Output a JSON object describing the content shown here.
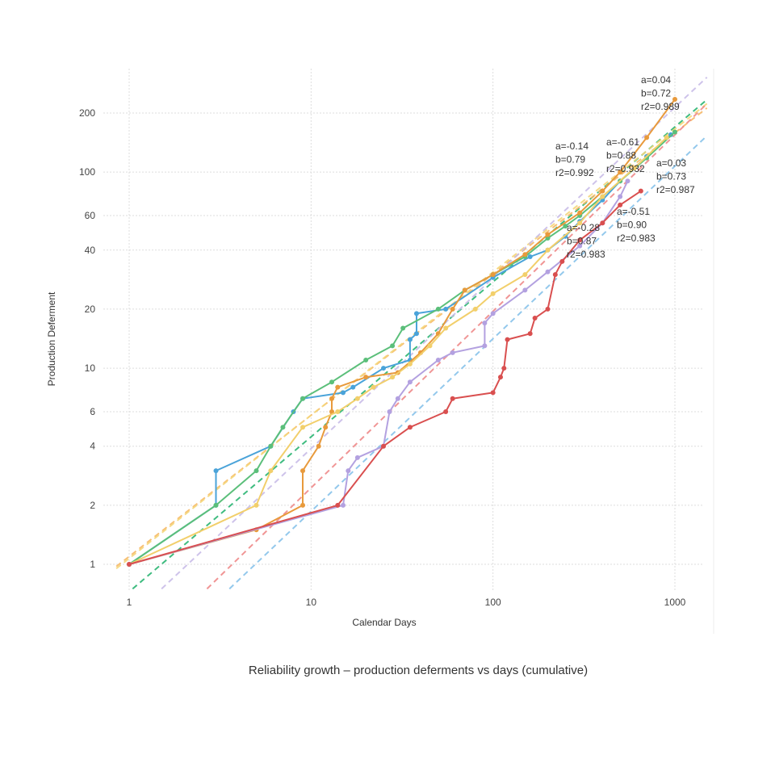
{
  "caption": "Reliability growth – production deferments vs days (cumulative)",
  "chart_data": {
    "type": "scatter",
    "title": "Reliability growth – production deferments vs days (cumulative)",
    "xlabel": "Calendar Days",
    "ylabel": "Production Deferment",
    "x_scale": "log",
    "y_scale": "log",
    "xlim": [
      0.85,
      1500
    ],
    "ylim": [
      0.75,
      380
    ],
    "x_ticks": [
      1,
      10,
      100,
      1000
    ],
    "x_tick_labels": [
      "1",
      "10",
      "100",
      "1000"
    ],
    "y_ticks": [
      1,
      2,
      4,
      6,
      10,
      20,
      40,
      60,
      100,
      200
    ],
    "y_tick_labels": [
      "1",
      "2",
      "4",
      "6",
      "10",
      "20",
      "40",
      "60",
      "100",
      "200"
    ],
    "grid": true,
    "legend": "none",
    "series": [
      {
        "color": "#4aa3d9",
        "points": [
          [
            1,
            1
          ],
          [
            3,
            2
          ],
          [
            3,
            3
          ],
          [
            6,
            4
          ],
          [
            8,
            6
          ],
          [
            9,
            7
          ],
          [
            15,
            7.5
          ],
          [
            17,
            8
          ],
          [
            25,
            10
          ],
          [
            35,
            11
          ],
          [
            35,
            14
          ],
          [
            38,
            15
          ],
          [
            38,
            19
          ],
          [
            55,
            20
          ],
          [
            100,
            29
          ],
          [
            160,
            37
          ],
          [
            200,
            40
          ],
          [
            250,
            47
          ],
          [
            300,
            56
          ],
          [
            400,
            72
          ],
          [
            500,
            90
          ],
          [
            700,
            120
          ],
          [
            950,
            155
          ]
        ]
      },
      {
        "color": "#5bbf7a",
        "points": [
          [
            1,
            1
          ],
          [
            3,
            2
          ],
          [
            5,
            3
          ],
          [
            6,
            4
          ],
          [
            7,
            5
          ],
          [
            9,
            7
          ],
          [
            13,
            8.5
          ],
          [
            20,
            11
          ],
          [
            28,
            13
          ],
          [
            32,
            16
          ],
          [
            50,
            20
          ],
          [
            70,
            25
          ],
          [
            100,
            30
          ],
          [
            150,
            37
          ],
          [
            200,
            46
          ],
          [
            250,
            53
          ],
          [
            300,
            60
          ],
          [
            400,
            75
          ],
          [
            500,
            90
          ],
          [
            700,
            118
          ],
          [
            1000,
            160
          ]
        ]
      },
      {
        "color": "#e89a3c",
        "points": [
          [
            1,
            1
          ],
          [
            5,
            1.5
          ],
          [
            9,
            2
          ],
          [
            9,
            3
          ],
          [
            11,
            4
          ],
          [
            12,
            5
          ],
          [
            13,
            6
          ],
          [
            13,
            7
          ],
          [
            14,
            8
          ],
          [
            20,
            9
          ],
          [
            30,
            9.5
          ],
          [
            40,
            12
          ],
          [
            50,
            15
          ],
          [
            60,
            20
          ],
          [
            70,
            25
          ],
          [
            100,
            30
          ],
          [
            150,
            38
          ],
          [
            200,
            48
          ],
          [
            300,
            62
          ],
          [
            400,
            80
          ],
          [
            500,
            100
          ],
          [
            700,
            150
          ],
          [
            1000,
            235
          ]
        ]
      },
      {
        "color": "#f2cf6b",
        "points": [
          [
            1,
            1
          ],
          [
            5,
            2
          ],
          [
            6,
            3
          ],
          [
            9,
            5
          ],
          [
            14,
            6
          ],
          [
            18,
            7
          ],
          [
            22,
            8
          ],
          [
            28,
            9
          ],
          [
            35,
            10.5
          ],
          [
            45,
            13
          ],
          [
            55,
            16
          ],
          [
            80,
            20
          ],
          [
            100,
            24
          ],
          [
            150,
            30
          ],
          [
            200,
            40
          ],
          [
            300,
            55
          ],
          [
            400,
            75
          ],
          [
            600,
            105
          ],
          [
            900,
            150
          ]
        ]
      },
      {
        "color": "#b3a1e0",
        "points": [
          [
            1,
            1
          ],
          [
            15,
            2
          ],
          [
            16,
            3
          ],
          [
            18,
            3.5
          ],
          [
            25,
            4
          ],
          [
            27,
            6
          ],
          [
            30,
            7
          ],
          [
            35,
            8.5
          ],
          [
            50,
            11
          ],
          [
            60,
            12
          ],
          [
            90,
            13
          ],
          [
            90,
            17
          ],
          [
            100,
            19
          ],
          [
            150,
            25
          ],
          [
            200,
            31
          ],
          [
            300,
            42
          ],
          [
            400,
            55
          ],
          [
            500,
            75
          ],
          [
            550,
            90
          ]
        ]
      },
      {
        "color": "#d94f4f",
        "points": [
          [
            1,
            1
          ],
          [
            14,
            2
          ],
          [
            25,
            4
          ],
          [
            35,
            5
          ],
          [
            55,
            6
          ],
          [
            60,
            7
          ],
          [
            100,
            7.5
          ],
          [
            110,
            9
          ],
          [
            115,
            10
          ],
          [
            120,
            14
          ],
          [
            160,
            15
          ],
          [
            170,
            18
          ],
          [
            200,
            20
          ],
          [
            220,
            30
          ],
          [
            240,
            35
          ],
          [
            300,
            45
          ],
          [
            400,
            55
          ],
          [
            500,
            68
          ],
          [
            650,
            80
          ]
        ]
      }
    ],
    "fit_lines": [
      {
        "color": "#2bb573",
        "label": [
          "a=-0.14",
          "b=0.79",
          "r2=0.992"
        ],
        "a": -0.14,
        "b": 0.79,
        "r2": 0.992
      },
      {
        "color": "#88c3ea",
        "label": [
          "a=-0.61",
          "b=0.88",
          "r2=0.932"
        ],
        "a": -0.61,
        "b": 0.88,
        "r2": 0.932
      },
      {
        "color": "#f7b967",
        "label": [
          "a=0.04",
          "b=0.72",
          "r2=0.989"
        ],
        "a": 0.04,
        "b": 0.72,
        "r2": 0.989
      },
      {
        "color": "#f5d67a",
        "label": [
          "a=0.03",
          "b=0.73",
          "r2=0.987"
        ],
        "a": 0.03,
        "b": 0.73,
        "r2": 0.987
      },
      {
        "color": "#c9bde8",
        "label": [
          "a=-0.28",
          "b=0.87",
          "r2=0.983"
        ],
        "a": -0.28,
        "b": 0.87,
        "r2": 0.983
      },
      {
        "color": "#ef8a8a",
        "label": [
          "a=-0.51",
          "b=0.90",
          "r2=0.983"
        ],
        "a": -0.51,
        "b": 0.9,
        "r2": 0.983
      }
    ]
  }
}
